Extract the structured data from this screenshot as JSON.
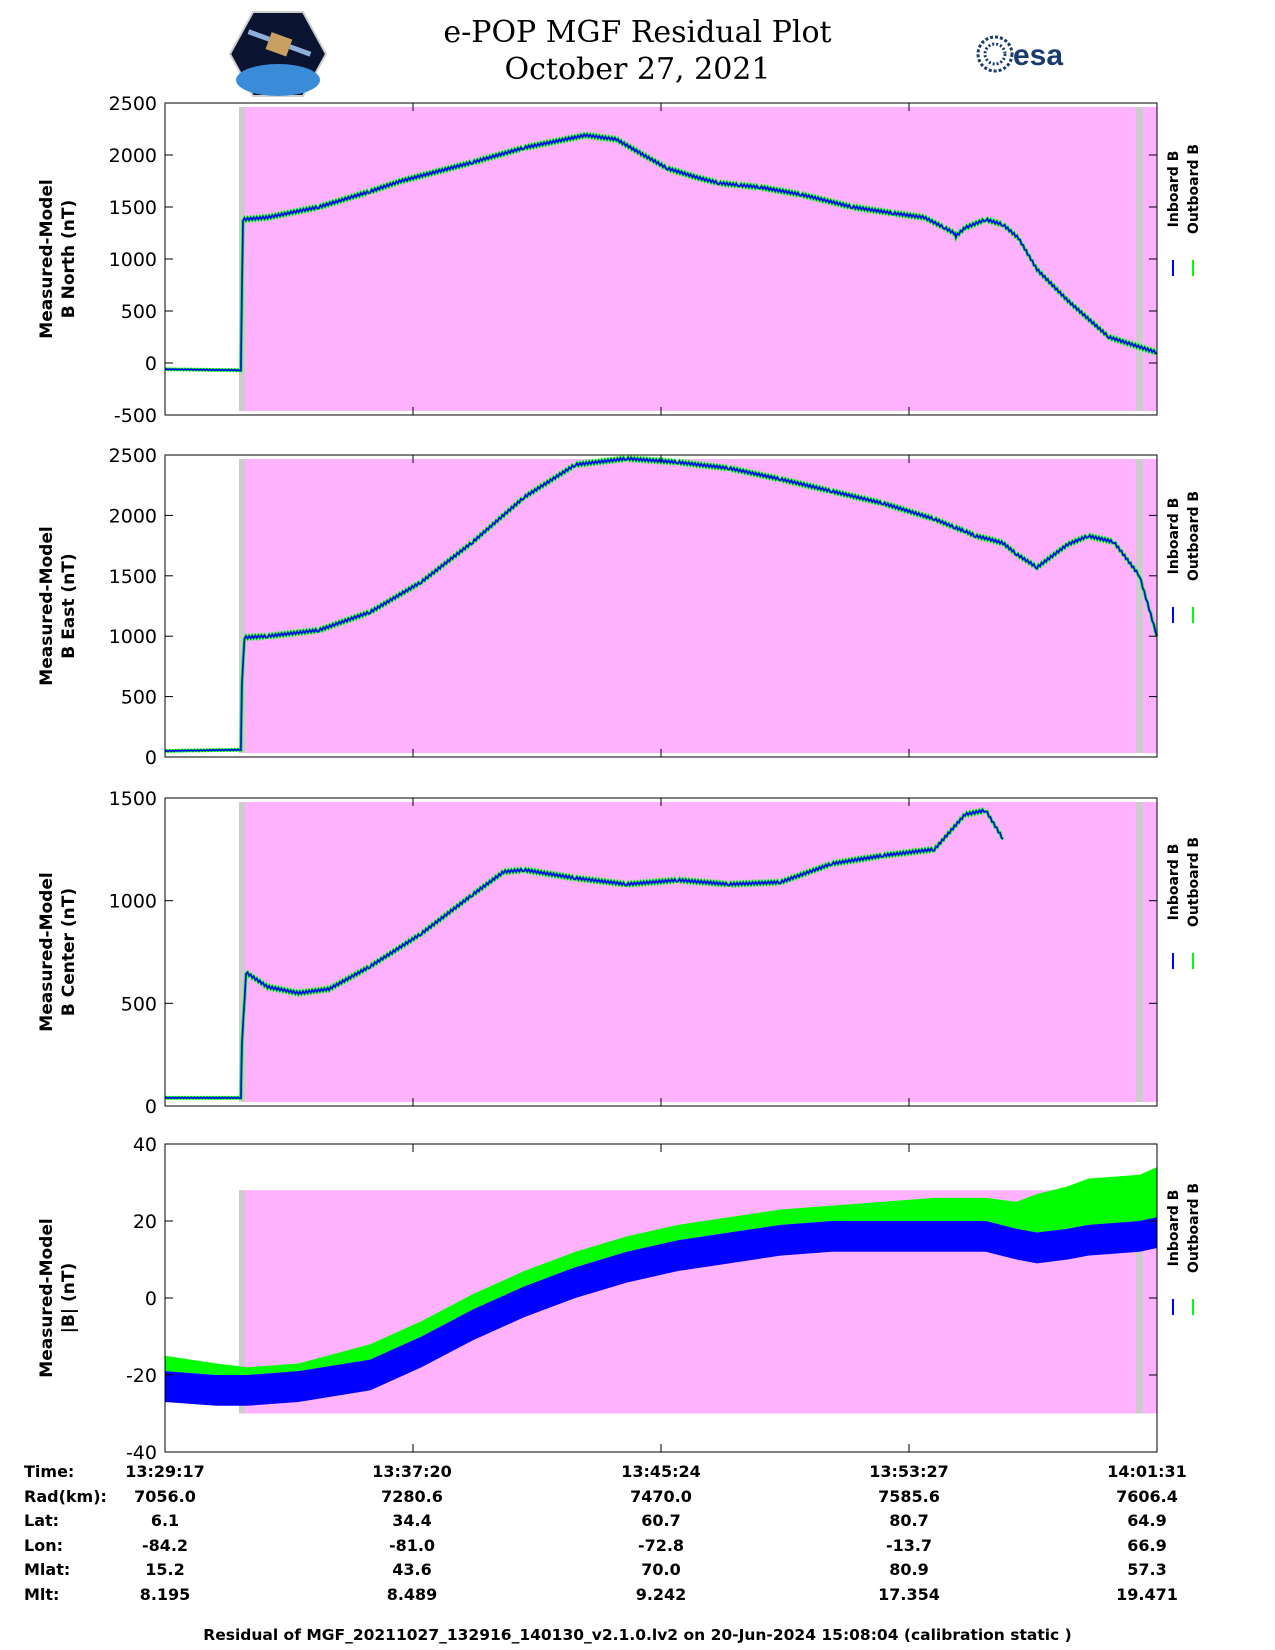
{
  "title": "e-POP MGF Residual Plot",
  "date": "October 27, 2021",
  "logos": {
    "left": "satellite-mission-logo",
    "right_text": "esa"
  },
  "colors": {
    "inboard": "#0000ff",
    "outboard": "#00ff00",
    "background_band": "#ffb3ff",
    "gap_band": "#cccccc"
  },
  "legend": {
    "inboard": "Inboard B",
    "outboard": "Outboard B"
  },
  "chart_data": [
    {
      "type": "line",
      "ylabel_1": "Measured-Model",
      "ylabel_2": "B North (nT)",
      "ylim": [
        -500,
        2500
      ],
      "yticks": [
        "-500",
        "0",
        "500",
        "1000",
        "1500",
        "2000",
        "2500"
      ],
      "x_range_sec": [
        0,
        1934
      ],
      "shaded_from_sec": 150,
      "series": [
        {
          "name": "Inboard B",
          "x": [
            0,
            148,
            150,
            152,
            200,
            300,
            400,
            460,
            600,
            700,
            820,
            880,
            940,
            980,
            1040,
            1080,
            1120,
            1160,
            1240,
            1340,
            1420,
            1480,
            1520,
            1538,
            1542,
            1560,
            1600,
            1634,
            1664,
            1700,
            1760,
            1840,
            1934
          ],
          "y": [
            -60,
            -70,
            700,
            1380,
            1400,
            1500,
            1650,
            1750,
            1930,
            2070,
            2190,
            2150,
            1980,
            1870,
            1780,
            1730,
            1710,
            1690,
            1620,
            1500,
            1440,
            1400,
            1300,
            1250,
            1220,
            1300,
            1380,
            1330,
            1200,
            900,
            600,
            250,
            100
          ]
        }
      ]
    },
    {
      "type": "line",
      "ylabel_1": "Measured-Model",
      "ylabel_2": "B East (nT)",
      "ylim": [
        0,
        2500
      ],
      "yticks": [
        "0",
        "500",
        "1000",
        "1500",
        "2000",
        "2500"
      ],
      "x_range_sec": [
        0,
        1934
      ],
      "shaded_from_sec": 150,
      "series": [
        {
          "name": "Inboard B",
          "x": [
            0,
            148,
            150,
            155,
            200,
            300,
            400,
            500,
            600,
            700,
            800,
            900,
            1000,
            1100,
            1200,
            1300,
            1400,
            1500,
            1540,
            1560,
            1580,
            1610,
            1634,
            1660,
            1700,
            1760,
            1800,
            1850,
            1900,
            1934
          ],
          "y": [
            50,
            60,
            600,
            990,
            1000,
            1050,
            1200,
            1450,
            1780,
            2150,
            2420,
            2470,
            2440,
            2390,
            2300,
            2200,
            2100,
            1970,
            1900,
            1870,
            1830,
            1800,
            1770,
            1680,
            1570,
            1760,
            1830,
            1780,
            1500,
            1000
          ]
        }
      ]
    },
    {
      "type": "line",
      "ylabel_1": "Measured-Model",
      "ylabel_2": "B Center (nT)",
      "ylim": [
        0,
        1500
      ],
      "yticks": [
        "0",
        "500",
        "1000",
        "1500"
      ],
      "x_range_sec": [
        0,
        1934
      ],
      "shaded_from_sec": 150,
      "series": [
        {
          "name": "Inboard B",
          "x": [
            0,
            148,
            150,
            158,
            200,
            260,
            320,
            400,
            500,
            600,
            660,
            700,
            800,
            900,
            1000,
            1100,
            1200,
            1300,
            1400,
            1500,
            1560,
            1600,
            1634
          ],
          "y": [
            40,
            40,
            300,
            650,
            580,
            550,
            570,
            680,
            840,
            1030,
            1140,
            1150,
            1110,
            1080,
            1100,
            1080,
            1090,
            1180,
            1220,
            1250,
            1420,
            1440,
            1300
          ]
        }
      ]
    },
    {
      "type": "area",
      "ylabel_1": "Measured-Model",
      "ylabel_2": "|B| (nT)",
      "ylim": [
        -40,
        40
      ],
      "yticks": [
        "-40",
        "-20",
        "0",
        "20",
        "40"
      ],
      "x_range_sec": [
        0,
        1934
      ],
      "shaded_from_sec": 150,
      "series": [
        {
          "name": "Outboard B",
          "x": [
            0,
            100,
            160,
            260,
            400,
            500,
            600,
            700,
            800,
            900,
            1000,
            1100,
            1200,
            1300,
            1400,
            1500,
            1600,
            1660,
            1700,
            1760,
            1800,
            1900,
            1934
          ],
          "y": [
            -17,
            -19,
            -20,
            -19,
            -14,
            -8,
            -1,
            5,
            10,
            14,
            17,
            19,
            21,
            22,
            23,
            24,
            24,
            23,
            25,
            27,
            29,
            30,
            32
          ]
        },
        {
          "name": "Inboard B",
          "x": [
            0,
            100,
            160,
            260,
            400,
            500,
            600,
            700,
            800,
            900,
            1000,
            1100,
            1200,
            1300,
            1400,
            1500,
            1600,
            1660,
            1700,
            1760,
            1800,
            1900,
            1934
          ],
          "y": [
            -25,
            -26,
            -26,
            -25,
            -22,
            -16,
            -9,
            -3,
            2,
            6,
            9,
            11,
            13,
            14,
            14,
            14,
            14,
            12,
            11,
            12,
            13,
            14,
            15
          ]
        }
      ]
    }
  ],
  "xticks": [
    "13:29:17",
    "13:37:20",
    "13:45:24",
    "13:53:27",
    "14:01:31"
  ],
  "footer": {
    "rows": [
      {
        "label": "Time:",
        "values": [
          "13:29:17",
          "13:37:20",
          "13:45:24",
          "13:53:27",
          "14:01:31"
        ]
      },
      {
        "label": "Rad(km):",
        "values": [
          "7056.0",
          "7280.6",
          "7470.0",
          "7585.6",
          "7606.4"
        ]
      },
      {
        "label": "Lat:",
        "values": [
          "6.1",
          "34.4",
          "60.7",
          "80.7",
          "64.9"
        ]
      },
      {
        "label": "Lon:",
        "values": [
          "-84.2",
          "-81.0",
          "-72.8",
          "-13.7",
          "66.9"
        ]
      },
      {
        "label": "Mlat:",
        "values": [
          "15.2",
          "43.6",
          "70.0",
          "80.9",
          "57.3"
        ]
      },
      {
        "label": "Mlt:",
        "values": [
          "8.195",
          "8.489",
          "9.242",
          "17.354",
          "19.471"
        ]
      }
    ],
    "note": "Residual of MGF_20211027_132916_140130_v2.1.0.lv2 on 20-Jun-2024 15:08:04 (calibration static )"
  }
}
